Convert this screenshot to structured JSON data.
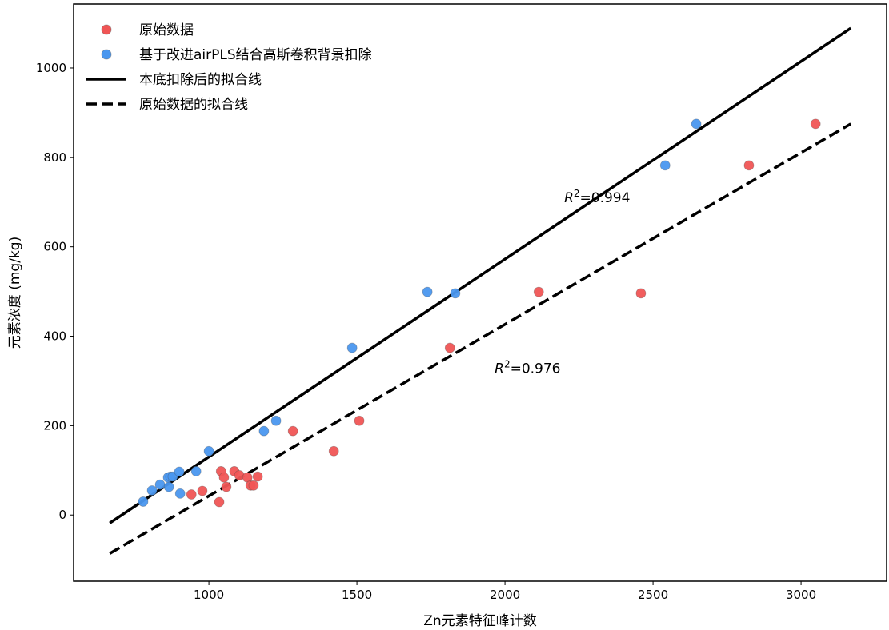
{
  "chart_data": {
    "type": "scatter",
    "xlabel": "Zn元素特征峰计数",
    "ylabel": "元素浓度 (mg/kg)",
    "xlim": [
      543,
      3289
    ],
    "ylim": [
      -148,
      1143
    ],
    "xticks": [
      1000,
      1500,
      2000,
      2500,
      3000
    ],
    "yticks": [
      0,
      200,
      400,
      600,
      800,
      1000
    ],
    "grid": false,
    "legend_position": "top-left",
    "series": [
      {
        "name": "原始数据",
        "kind": "points",
        "color": "#f05555",
        "x": [
          941,
          978,
          1035,
          1041,
          1051,
          1059,
          1086,
          1103,
          1130,
          1141,
          1151,
          1165,
          1284,
          1422,
          1508,
          1814,
          2114,
          2459,
          2824,
          3049
        ],
        "y": [
          46,
          54,
          29,
          98,
          84,
          63,
          98,
          89,
          84,
          66,
          66,
          86,
          188,
          143,
          211,
          374,
          499,
          496,
          782,
          875
        ]
      },
      {
        "name": "基于改进airPLS结合高斯卷积背景扣除",
        "kind": "points",
        "color": "#4a97ef",
        "x": [
          778,
          808,
          835,
          862,
          865,
          870,
          878,
          900,
          903,
          957,
          1000,
          1186,
          1227,
          1484,
          1738,
          1832,
          2541,
          2646
        ],
        "y": [
          30,
          55,
          68,
          84,
          63,
          86,
          86,
          97,
          48,
          98,
          143,
          188,
          211,
          374,
          499,
          496,
          782,
          875
        ]
      },
      {
        "name": "本底扣除后的拟合线",
        "kind": "line",
        "style": "solid",
        "color": "#000000",
        "x": [
          665,
          3168
        ],
        "y": [
          -18,
          1089
        ]
      },
      {
        "name": "原始数据的拟合线",
        "kind": "line",
        "style": "dashed",
        "color": "#000000",
        "x": [
          665,
          3168
        ],
        "y": [
          -86,
          875
        ]
      }
    ],
    "annotations": [
      {
        "label": "R",
        "sup": "2",
        "value": "=0.994",
        "x": 2200,
        "y": 700
      },
      {
        "label": "R",
        "sup": "2",
        "value": "=0.976",
        "x": 1965,
        "y": 318
      }
    ]
  }
}
